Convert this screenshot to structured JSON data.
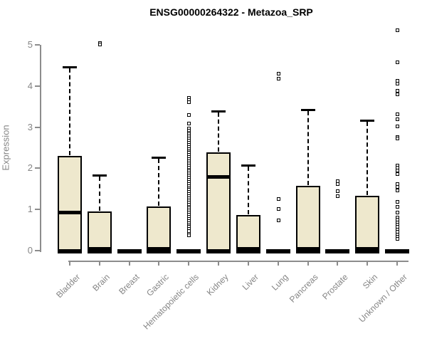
{
  "chart_data": {
    "type": "box",
    "title": "ENSG00000264322 - Metazoa_SRP",
    "xlabel": "",
    "ylabel": "Expression",
    "ylim": [
      0,
      5
    ],
    "yticks": [
      0,
      1,
      2,
      3,
      4,
      5
    ],
    "grid": false,
    "legend": false,
    "categories": [
      "Bladder",
      "Brain",
      "Breast",
      "Gastric",
      "Hematopoietic cells",
      "Kidney",
      "Liver",
      "Lung",
      "Pancreas",
      "Prostate",
      "Skin",
      "Unknown / Other"
    ],
    "series": [
      {
        "category": "Bladder",
        "slug": "bladder",
        "whisker_low": 0,
        "q1": 0,
        "median": 0.93,
        "q3": 2.3,
        "whisker_high": 4.47,
        "outliers": []
      },
      {
        "category": "Brain",
        "slug": "brain",
        "whisker_low": 0,
        "q1": 0,
        "median": 0.06,
        "q3": 0.95,
        "whisker_high": 1.84,
        "outliers": [
          5.06,
          5.02
        ]
      },
      {
        "category": "Breast",
        "slug": "breast",
        "whisker_low": 0,
        "q1": 0,
        "median": 0,
        "q3": 0,
        "whisker_high": 0,
        "outliers": []
      },
      {
        "category": "Gastric",
        "slug": "gastric",
        "whisker_low": 0,
        "q1": 0,
        "median": 0.05,
        "q3": 1.08,
        "whisker_high": 2.26,
        "outliers": []
      },
      {
        "category": "Hematopoietic cells",
        "slug": "hematopoietic-cells",
        "whisker_low": 0,
        "q1": 0,
        "median": 0,
        "q3": 0,
        "whisker_high": 0,
        "outliers": [
          3.72,
          3.67,
          3.61,
          3.3,
          3.1,
          2.98,
          2.93,
          2.88,
          2.83,
          2.78,
          2.73,
          2.68,
          2.63,
          2.58,
          2.53,
          2.48,
          2.43,
          2.38,
          2.33,
          2.28,
          2.23,
          2.18,
          2.13,
          2.08,
          2.03,
          1.98,
          1.93,
          1.88,
          1.83,
          1.78,
          1.73,
          1.68,
          1.63,
          1.58,
          1.53,
          1.48,
          1.43,
          1.38,
          1.33,
          1.28,
          1.23,
          1.18,
          1.13,
          1.08,
          1.03,
          0.98,
          0.93,
          0.88,
          0.83,
          0.78,
          0.73,
          0.68,
          0.63,
          0.58,
          0.53,
          0.48,
          0.42,
          0.38
        ]
      },
      {
        "category": "Kidney",
        "slug": "kidney",
        "whisker_low": 0,
        "q1": 0,
        "median": 1.8,
        "q3": 2.38,
        "whisker_high": 3.39,
        "outliers": []
      },
      {
        "category": "Liver",
        "slug": "liver",
        "whisker_low": 0,
        "q1": 0,
        "median": 0.05,
        "q3": 0.87,
        "whisker_high": 2.07,
        "outliers": []
      },
      {
        "category": "Lung",
        "slug": "lung",
        "whisker_low": 0,
        "q1": 0,
        "median": 0,
        "q3": 0,
        "whisker_high": 0,
        "outliers": [
          4.3,
          4.19,
          1.26,
          1.02,
          0.75
        ]
      },
      {
        "category": "Pancreas",
        "slug": "pancreas",
        "whisker_low": 0,
        "q1": 0,
        "median": 0.05,
        "q3": 1.57,
        "whisker_high": 3.42,
        "outliers": []
      },
      {
        "category": "Prostate",
        "slug": "prostate",
        "whisker_low": 0,
        "q1": 0,
        "median": 0,
        "q3": 0,
        "whisker_high": 0,
        "outliers": [
          1.7,
          1.63,
          1.45,
          1.33
        ]
      },
      {
        "category": "Skin",
        "slug": "skin",
        "whisker_low": 0,
        "q1": 0,
        "median": 0.05,
        "q3": 1.34,
        "whisker_high": 3.16,
        "outliers": []
      },
      {
        "category": "Unknown / Other",
        "slug": "unknown-other",
        "whisker_low": 0,
        "q1": 0,
        "median": 0,
        "q3": 0,
        "whisker_high": 0,
        "outliers": [
          5.37,
          4.59,
          4.13,
          4.07,
          3.89,
          3.81,
          3.32,
          3.2,
          3.03,
          2.77,
          2.73,
          2.08,
          2.03,
          1.95,
          1.86,
          1.63,
          1.55,
          1.47,
          1.19,
          1.07,
          0.93,
          0.81,
          0.76,
          0.7,
          0.64,
          0.58,
          0.52,
          0.46,
          0.4,
          0.34,
          0.29
        ]
      }
    ],
    "colors": {
      "background": "#FFFFFF",
      "box_fill": "#EEE8CD",
      "box_border": "#000000",
      "median": "#000000",
      "whisker": "#000000",
      "axis": "#8C8C8C",
      "tick_label": "#858585",
      "title": "#000000"
    }
  }
}
